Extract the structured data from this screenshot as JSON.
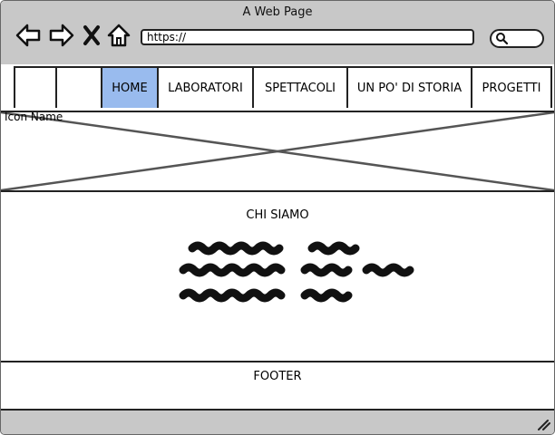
{
  "window": {
    "title": "A Web Page",
    "address": "https://"
  },
  "toolbar": {
    "icons": [
      "back-arrow-icon",
      "forward-arrow-icon",
      "close-x-icon",
      "home-icon",
      "search-icon"
    ]
  },
  "nav": {
    "tabs": [
      {
        "label": "HOME",
        "active": true
      },
      {
        "label": "LABORATORI",
        "active": false
      },
      {
        "label": "SPETTACOLI",
        "active": false
      },
      {
        "label": "UN PO' DI STORIA",
        "active": false
      },
      {
        "label": "PROGETTI",
        "active": false
      }
    ]
  },
  "hero": {
    "label": "Icon Name"
  },
  "section": {
    "title": "CHI SIAMO"
  },
  "footer": {
    "label": "FOOTER"
  },
  "colors": {
    "chrome": "#c8c8c8",
    "active_tab": "#99bbee",
    "stroke": "#222222"
  }
}
